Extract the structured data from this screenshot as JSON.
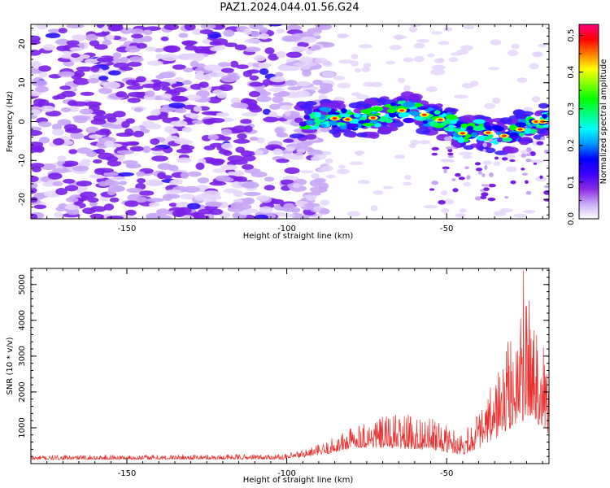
{
  "title": "PAZ1.2024.044.01.56.G24",
  "chart_data": [
    {
      "type": "heatmap",
      "xlabel": "Height of straight line (km)",
      "ylabel": "Frequency (Hz)",
      "xlim": [
        -180,
        -18
      ],
      "ylim": [
        -25,
        25
      ],
      "xticks": [
        -150,
        -100,
        -50
      ],
      "yticks": [
        -20,
        -10,
        0,
        10,
        20
      ],
      "colorbar": {
        "label": "Normalized spectral amplitude",
        "range": [
          0,
          0.53
        ],
        "ticks": [
          0.0,
          0.1,
          0.2,
          0.3,
          0.4,
          0.5
        ],
        "colormap": [
          "#ffffff",
          "#c9a8f5",
          "#8a2be2",
          "#3b00ff",
          "#0000ff",
          "#0096ff",
          "#00ffff",
          "#00ff80",
          "#00ff00",
          "#80ff00",
          "#ffff00",
          "#ff8000",
          "#ff0000",
          "#ff0080"
        ]
      },
      "features": {
        "noise_region": {
          "x": [
            -180,
            -95
          ],
          "y": [
            -25,
            25
          ],
          "amplitude_typical": 0.05
        },
        "signal_track": [
          {
            "x": -95,
            "y": 0
          },
          {
            "x": -88,
            "y": 1
          },
          {
            "x": -80,
            "y": 0.5
          },
          {
            "x": -72,
            "y": 1
          },
          {
            "x": -65,
            "y": 3
          },
          {
            "x": -58,
            "y": 2
          },
          {
            "x": -50,
            "y": 0
          },
          {
            "x": -45,
            "y": -3
          },
          {
            "x": -40,
            "y": -2
          },
          {
            "x": -33,
            "y": -4
          },
          {
            "x": -27,
            "y": -2
          },
          {
            "x": -22,
            "y": 0
          }
        ],
        "signal_amplitude_peak": 0.53
      }
    },
    {
      "type": "line",
      "xlabel": "Height of straight line (km)",
      "ylabel": "SNR (10 * v/v)",
      "xlim": [
        -180,
        -18
      ],
      "ylim": [
        0,
        5450
      ],
      "xticks": [
        -150,
        -100,
        -50
      ],
      "yticks": [
        1000,
        2000,
        3000,
        4000,
        5000
      ],
      "color": "#e8302e",
      "envelope": [
        {
          "x": -180,
          "base": 110,
          "amp": 120
        },
        {
          "x": -100,
          "base": 120,
          "amp": 150
        },
        {
          "x": -88,
          "base": 250,
          "amp": 350
        },
        {
          "x": -78,
          "base": 450,
          "amp": 700
        },
        {
          "x": -65,
          "base": 420,
          "amp": 1000
        },
        {
          "x": -55,
          "base": 380,
          "amp": 900
        },
        {
          "x": -45,
          "base": 250,
          "amp": 650
        },
        {
          "x": -38,
          "base": 500,
          "amp": 1200
        },
        {
          "x": -33,
          "base": 800,
          "amp": 2200
        },
        {
          "x": -28,
          "base": 1100,
          "amp": 3000
        },
        {
          "x": -24,
          "base": 1300,
          "amp": 3400
        },
        {
          "x": -20,
          "base": 1000,
          "amp": 3000
        },
        {
          "x": -18,
          "base": 800,
          "amp": 1600
        }
      ],
      "peak": {
        "x": -26,
        "y": 5400
      }
    }
  ]
}
